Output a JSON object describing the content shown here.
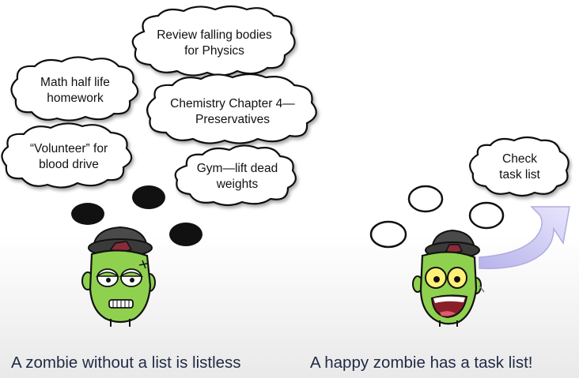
{
  "left_panel": {
    "thoughts": [
      {
        "lines": [
          "Review falling bodies",
          "for Physics"
        ]
      },
      {
        "lines": [
          "Math half life",
          "homework"
        ]
      },
      {
        "lines": [
          "Chemistry Chapter 4—",
          "Preservatives"
        ]
      },
      {
        "lines": [
          "“Volunteer” for",
          "blood drive"
        ]
      },
      {
        "lines": [
          "Gym—lift dead",
          "weights"
        ]
      }
    ],
    "caption": "A zombie without a list is listless"
  },
  "right_panel": {
    "thought": {
      "lines": [
        "Check",
        "task list"
      ]
    },
    "caption": "A happy zombie has a task list!"
  },
  "colors": {
    "zombie_skin": "#8fd14f",
    "hat": "#444444",
    "arrow": "#c9c6f0",
    "caption": "#1f2a44"
  }
}
